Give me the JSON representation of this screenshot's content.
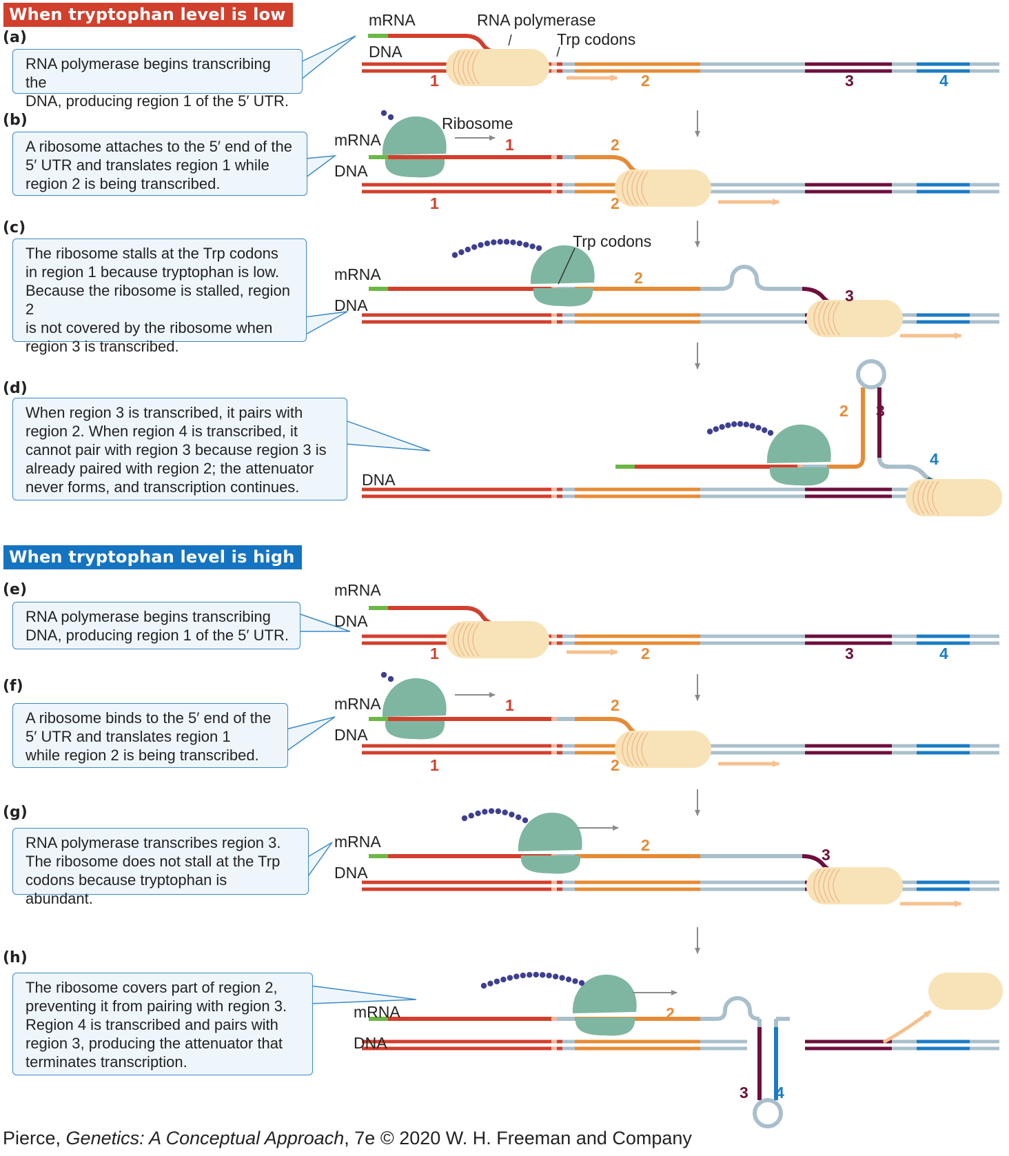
{
  "banners": {
    "low": "When tryptophan level is low",
    "high": "When tryptophan level is high"
  },
  "steps": {
    "a": {
      "label": "(a)",
      "lines": [
        "RNA polymerase begins transcribing the",
        "DNA, producing region 1 of the 5′ UTR."
      ]
    },
    "b": {
      "label": "(b)",
      "lines": [
        "A ribosome attaches to the 5′ end of the",
        "5′ UTR and translates region 1 while",
        "region 2 is being transcribed."
      ]
    },
    "c": {
      "label": "(c)",
      "lines": [
        "The ribosome stalls at the Trp codons",
        "in region 1 because tryptophan is low.",
        "Because the ribosome is stalled, region 2",
        "is not covered by the ribosome when",
        "region 3 is transcribed."
      ]
    },
    "d": {
      "label": "(d)",
      "lines": [
        "When region 3 is transcribed, it pairs with",
        "region 2. When region 4 is transcribed, it",
        "cannot pair with region 3 because region 3 is",
        "already paired with region 2; the attenuator",
        "never forms, and transcription continues."
      ]
    },
    "e": {
      "label": "(e)",
      "lines": [
        "RNA polymerase begins transcribing",
        "DNA, producing region 1 of the 5′ UTR."
      ]
    },
    "f": {
      "label": "(f)",
      "lines": [
        "A ribosome binds to the 5′ end of the",
        "5′ UTR and translates region 1",
        "while region 2 is being transcribed."
      ]
    },
    "g": {
      "label": "(g)",
      "lines": [
        "RNA polymerase transcribes region 3.",
        "The ribosome does not stall at the Trp",
        "codons because tryptophan is abundant."
      ]
    },
    "h": {
      "label": "(h)",
      "lines": [
        "The ribosome covers part of region 2,",
        "preventing it from pairing with region 3.",
        "Region 4 is transcribed and pairs with",
        "region 3, producing the attenuator that",
        "terminates transcription."
      ]
    }
  },
  "labels": {
    "mrna": "mRNA",
    "dna": "DNA",
    "rna_polymerase": "RNA polymerase",
    "trp_codons": "Trp codons",
    "ribosome": "Ribosome",
    "region_1": "1",
    "region_2": "2",
    "region_3": "3",
    "region_4": "4"
  },
  "colors": {
    "region_1": "#d23f2c",
    "region_2": "#e68b35",
    "region_3": "#6e0f3c",
    "region_4": "#1b7cc4",
    "leader": "#6bb844",
    "spacer": "#a9bfcc",
    "ribosome": "#7fb6a1",
    "polymerase": "#f8e3b8",
    "peptide": "#3f3f8f",
    "callout_fill": "#eef6fc",
    "callout_border": "#3a89c5"
  },
  "footer": {
    "author": "Pierce, ",
    "title": "Genetics: A Conceptual Approach",
    "rest": ", 7e © 2020 W. H. Freeman and Company"
  }
}
